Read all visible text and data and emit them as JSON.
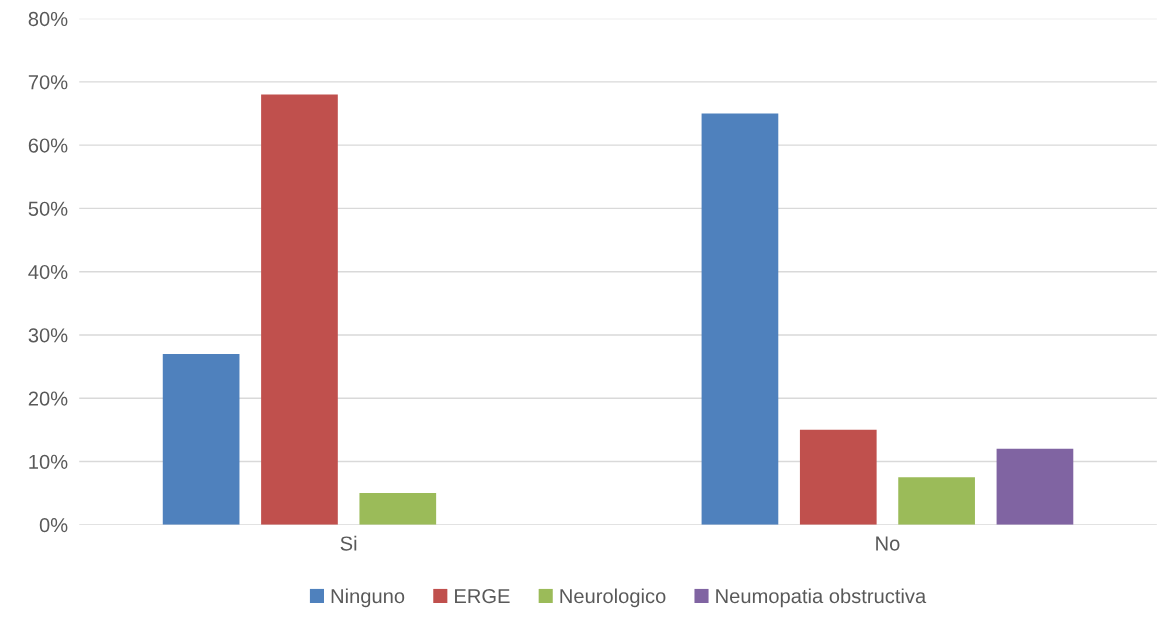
{
  "chart_data": {
    "type": "bar",
    "categories": [
      "Si",
      "No"
    ],
    "series": [
      {
        "name": "Ninguno",
        "color": "#4f81bd",
        "values": [
          27,
          65
        ]
      },
      {
        "name": "ERGE",
        "color": "#c0504d",
        "values": [
          68,
          15
        ]
      },
      {
        "name": "Neurologico",
        "color": "#9bbb59",
        "values": [
          5,
          7.5
        ]
      },
      {
        "name": "Neumopatia obstructiva",
        "color": "#8064a2",
        "values": [
          null,
          12
        ]
      }
    ],
    "ylim": [
      0,
      80
    ],
    "yticks": [
      {
        "value": 0,
        "label": "0%"
      },
      {
        "value": 10,
        "label": "10%"
      },
      {
        "value": 20,
        "label": "20%"
      },
      {
        "value": 30,
        "label": "30%"
      },
      {
        "value": 40,
        "label": "40%"
      },
      {
        "value": 50,
        "label": "50%"
      },
      {
        "value": 60,
        "label": "60%"
      },
      {
        "value": 70,
        "label": "70%"
      },
      {
        "value": 80,
        "label": "80%"
      }
    ],
    "grid": "y",
    "legend": "bottom"
  }
}
